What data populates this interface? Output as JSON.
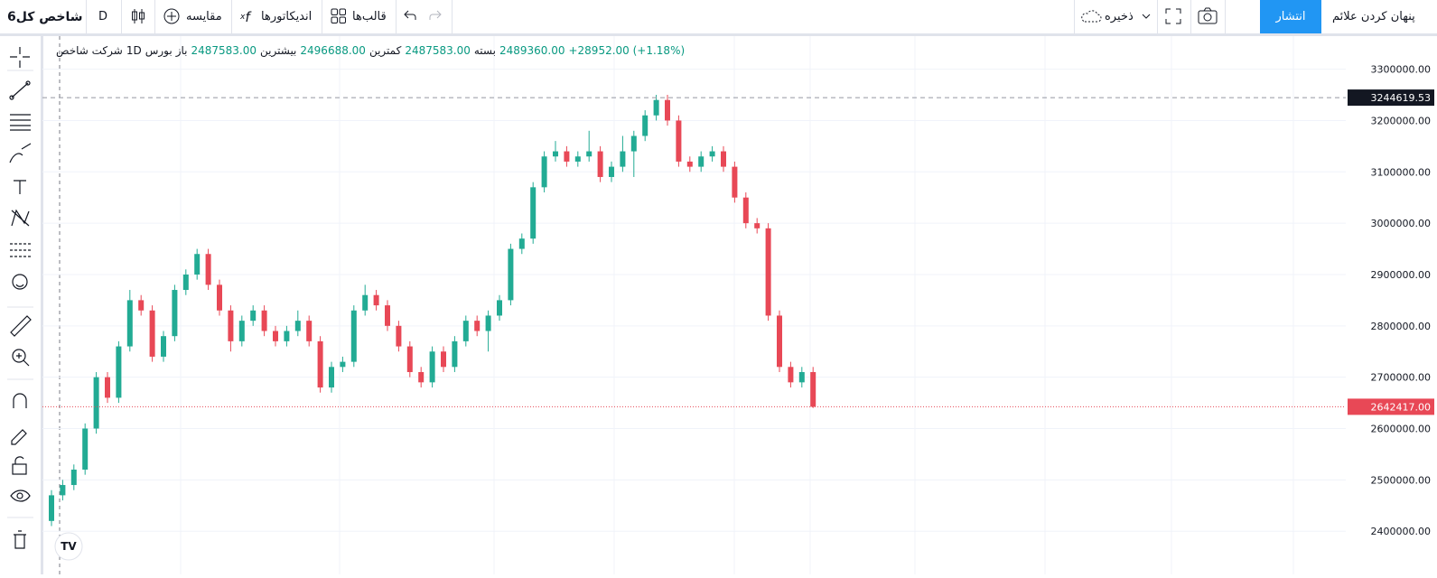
{
  "toolbar": {
    "symbol": "شاخص کل6",
    "interval": "D",
    "compare": "مقایسه",
    "indicators": "اندیکاتورها",
    "templates": "قالب‌ها",
    "save": "ذخیره",
    "publish": "انتشار",
    "hide_marks": "پنهان کردن علائم"
  },
  "legend": {
    "name": "شرکت شاخص",
    "interval": "1D",
    "exchange": "بورس",
    "open_label": "باز",
    "open": "2487583.00",
    "high_label": "بیشترین",
    "high": "2496688.00",
    "low_label": "کمترین",
    "low": "2487583.00",
    "close_label": "بسته",
    "close": "2489360.00",
    "change": "+28952.00 (+1.18%)"
  },
  "chart_data": {
    "type": "candlestick",
    "up_color": "#22ab94",
    "down_color": "#e84856",
    "open": [
      2420000,
      2470000,
      2490000,
      2520000,
      2600000,
      2700000,
      2660000,
      2760000,
      2850000,
      2830000,
      2740000,
      2780000,
      2870000,
      2900000,
      2940000,
      2880000,
      2830000,
      2770000,
      2810000,
      2830000,
      2790000,
      2770000,
      2790000,
      2810000,
      2770000,
      2680000,
      2720000,
      2730000,
      2830000,
      2860000,
      2840000,
      2800000,
      2760000,
      2710000,
      2690000,
      2750000,
      2720000,
      2770000,
      2810000,
      2790000,
      2820000,
      2850000,
      2950000,
      2970000,
      3070000,
      3130000,
      3140000,
      3120000,
      3130000,
      3140000,
      3090000,
      3110000,
      3140000,
      3170000,
      3210000,
      3240000,
      3200000,
      3120000,
      3110000,
      3130000,
      3140000,
      3110000,
      3050000,
      3000000,
      2990000,
      2820000,
      2720000,
      2690000,
      2710000
    ],
    "high": [
      2480000,
      2500000,
      2530000,
      2610000,
      2710000,
      2710000,
      2770000,
      2870000,
      2860000,
      2840000,
      2790000,
      2880000,
      2910000,
      2950000,
      2950000,
      2890000,
      2840000,
      2820000,
      2840000,
      2840000,
      2800000,
      2800000,
      2830000,
      2820000,
      2780000,
      2730000,
      2740000,
      2840000,
      2880000,
      2870000,
      2850000,
      2810000,
      2770000,
      2720000,
      2760000,
      2760000,
      2780000,
      2820000,
      2820000,
      2830000,
      2860000,
      2960000,
      2980000,
      3080000,
      3140000,
      3160000,
      3150000,
      3140000,
      3180000,
      3150000,
      3120000,
      3170000,
      3180000,
      3220000,
      3250000,
      3250000,
      3210000,
      3130000,
      3140000,
      3150000,
      3150000,
      3120000,
      3060000,
      3010000,
      3000000,
      2830000,
      2730000,
      2720000,
      2720000
    ],
    "low": [
      2410000,
      2460000,
      2480000,
      2510000,
      2590000,
      2650000,
      2650000,
      2750000,
      2820000,
      2730000,
      2730000,
      2770000,
      2860000,
      2890000,
      2870000,
      2820000,
      2750000,
      2760000,
      2800000,
      2780000,
      2760000,
      2760000,
      2780000,
      2760000,
      2670000,
      2670000,
      2710000,
      2720000,
      2820000,
      2830000,
      2790000,
      2750000,
      2700000,
      2680000,
      2680000,
      2710000,
      2710000,
      2760000,
      2780000,
      2750000,
      2810000,
      2840000,
      2940000,
      2960000,
      3060000,
      3120000,
      3110000,
      3110000,
      3120000,
      3080000,
      3080000,
      3100000,
      3090000,
      3160000,
      3200000,
      3190000,
      3110000,
      3100000,
      3100000,
      3120000,
      3100000,
      3040000,
      2990000,
      2980000,
      2810000,
      2710000,
      2680000,
      2680000,
      2640000
    ],
    "close": [
      2470000,
      2490000,
      2520000,
      2600000,
      2700000,
      2660000,
      2760000,
      2850000,
      2830000,
      2740000,
      2780000,
      2870000,
      2900000,
      2940000,
      2880000,
      2830000,
      2770000,
      2810000,
      2830000,
      2790000,
      2770000,
      2790000,
      2810000,
      2770000,
      2680000,
      2720000,
      2730000,
      2830000,
      2860000,
      2840000,
      2800000,
      2760000,
      2710000,
      2690000,
      2750000,
      2720000,
      2770000,
      2810000,
      2790000,
      2820000,
      2850000,
      2950000,
      2970000,
      3070000,
      3130000,
      3140000,
      3120000,
      3130000,
      3140000,
      3090000,
      3110000,
      3140000,
      3170000,
      3210000,
      3240000,
      3200000,
      3120000,
      3110000,
      3130000,
      3140000,
      3110000,
      3050000,
      3000000,
      2990000,
      2820000,
      2720000,
      2690000,
      2710000,
      2642417
    ],
    "ylim": [
      2315900,
      3364400
    ],
    "yticks": [
      {
        "value": 2400000,
        "label": "2400000.00"
      },
      {
        "value": 2500000,
        "label": "2500000.00"
      },
      {
        "value": 2600000,
        "label": "2600000.00"
      },
      {
        "value": 2700000,
        "label": "2700000.00"
      },
      {
        "value": 2800000,
        "label": "2800000.00"
      },
      {
        "value": 2900000,
        "label": "2900000.00"
      },
      {
        "value": 3000000,
        "label": "3000000.00"
      },
      {
        "value": 3100000,
        "label": "3100000.00"
      },
      {
        "value": 3200000,
        "label": "3200000.00"
      },
      {
        "value": 3300000,
        "label": "3300000.00"
      }
    ],
    "grid": true,
    "last_price": {
      "value": 2642417,
      "label": "2642417.00"
    },
    "crosshair_price": {
      "value": 3244619.53,
      "label": "3244619.53"
    }
  }
}
